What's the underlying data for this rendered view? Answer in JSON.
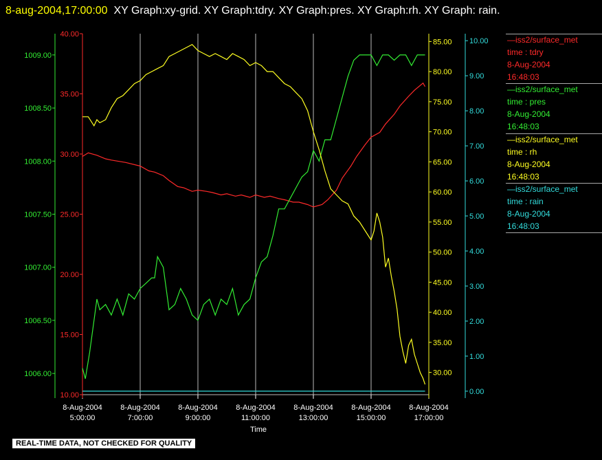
{
  "header": {
    "timestamp": "8-aug-2004,17:00:00",
    "graphs_text": "XY Graph:xy-grid.  XY Graph:tdry.  XY Graph:pres.  XY Graph:rh.  XY Graph: rain."
  },
  "legend": [
    {
      "source": "iss2/surface_met",
      "field": "time : tdry",
      "date": "8-Aug-2004",
      "time": "16:48:03",
      "color": "#ff2a2a"
    },
    {
      "source": "iss2/surface_met",
      "field": "time : pres",
      "date": "8-Aug-2004",
      "time": "16:48:03",
      "color": "#33ee33"
    },
    {
      "source": "iss2/surface_met",
      "field": "time : rh",
      "date": "8-Aug-2004",
      "time": "16:48:03",
      "color": "#ffff22"
    },
    {
      "source": "iss2/surface_met",
      "field": "time : rain",
      "date": "8-Aug-2004",
      "time": "16:48:03",
      "color": "#33dddd"
    }
  ],
  "footer": "REAL-TIME DATA, NOT CHECKED FOR QUALITY",
  "chart_data": {
    "type": "line",
    "xlabel": "Time",
    "x_ticks": [
      {
        "date": "8-Aug-2004",
        "time": "5:00:00",
        "hour": 5
      },
      {
        "date": "8-Aug-2004",
        "time": "7:00:00",
        "hour": 7
      },
      {
        "date": "8-Aug-2004",
        "time": "9:00:00",
        "hour": 9
      },
      {
        "date": "8-Aug-2004",
        "time": "11:00:00",
        "hour": 11
      },
      {
        "date": "8-Aug-2004",
        "time": "13:00:00",
        "hour": 13
      },
      {
        "date": "8-Aug-2004",
        "time": "15:00:00",
        "hour": 15
      },
      {
        "date": "8-Aug-2004",
        "time": "17:00:00",
        "hour": 17
      }
    ],
    "xlim": [
      5,
      17
    ],
    "grid": true,
    "legend_position": "right",
    "axes": {
      "pres": {
        "color": "#33ee33",
        "ylim": [
          1005.8,
          1009.2
        ],
        "ticks": [
          "1006.00",
          "1006.50",
          "1007.00",
          "1007.50",
          "1008.00",
          "1008.50",
          "1009.00"
        ],
        "tick_values": [
          1006.0,
          1006.5,
          1007.0,
          1007.5,
          1008.0,
          1008.5,
          1009.0
        ]
      },
      "tdry": {
        "color": "#ff2a2a",
        "ylim": [
          10,
          40
        ],
        "ticks": [
          "10.00",
          "15.00",
          "20.00",
          "25.00",
          "30.00",
          "35.00",
          "40.00"
        ],
        "tick_values": [
          10,
          15,
          20,
          25,
          30,
          35,
          40
        ]
      },
      "rh": {
        "color": "#ffff22",
        "ylim": [
          26.3,
          86.3
        ],
        "ticks": [
          "30.00",
          "35.00",
          "40.00",
          "45.00",
          "50.00",
          "55.00",
          "60.00",
          "65.00",
          "70.00",
          "75.00",
          "80.00",
          "85.00"
        ],
        "tick_values": [
          30,
          35,
          40,
          45,
          50,
          55,
          60,
          65,
          70,
          75,
          80,
          85
        ]
      },
      "rain": {
        "color": "#33dddd",
        "ylim": [
          -0.1,
          10.2
        ],
        "ticks": [
          "0.00",
          "1.00",
          "2.00",
          "3.00",
          "4.00",
          "5.00",
          "6.00",
          "7.00",
          "8.00",
          "9.00",
          "10.00"
        ],
        "tick_values": [
          0,
          1,
          2,
          3,
          4,
          5,
          6,
          7,
          8,
          9,
          10
        ]
      }
    },
    "series": [
      {
        "name": "time : tdry",
        "color": "#ff2a2a",
        "axis": "tdry",
        "x": [
          5.0,
          5.2,
          5.5,
          5.8,
          6.0,
          6.5,
          7.0,
          7.3,
          7.5,
          7.8,
          8.0,
          8.3,
          8.5,
          8.8,
          9.0,
          9.3,
          9.5,
          9.8,
          10.0,
          10.3,
          10.5,
          10.8,
          11.0,
          11.3,
          11.5,
          11.8,
          12.0,
          12.3,
          12.5,
          12.8,
          13.0,
          13.3,
          13.5,
          13.8,
          14.0,
          14.3,
          14.5,
          14.8,
          15.0,
          15.3,
          15.5,
          15.8,
          16.0,
          16.3,
          16.5,
          16.8,
          16.87
        ],
        "values": [
          29.8,
          30.1,
          29.9,
          29.6,
          29.5,
          29.3,
          29.0,
          28.6,
          28.5,
          28.2,
          27.8,
          27.3,
          27.2,
          26.9,
          27.0,
          26.9,
          26.8,
          26.6,
          26.7,
          26.5,
          26.6,
          26.4,
          26.6,
          26.4,
          26.5,
          26.3,
          26.2,
          26.0,
          26.0,
          25.8,
          25.6,
          25.8,
          26.2,
          27.0,
          28.0,
          29.0,
          29.8,
          30.8,
          31.4,
          31.8,
          32.5,
          33.3,
          34.0,
          34.8,
          35.3,
          35.9,
          35.6
        ]
      },
      {
        "name": "time : pres",
        "color": "#33ee33",
        "axis": "pres",
        "x": [
          5.0,
          5.1,
          5.25,
          5.4,
          5.5,
          5.6,
          5.8,
          6.0,
          6.2,
          6.4,
          6.6,
          6.8,
          7.0,
          7.2,
          7.4,
          7.5,
          7.6,
          7.8,
          8.0,
          8.2,
          8.4,
          8.6,
          8.8,
          9.0,
          9.2,
          9.4,
          9.6,
          9.8,
          10.0,
          10.2,
          10.4,
          10.6,
          10.8,
          11.0,
          11.2,
          11.4,
          11.5,
          11.6,
          11.8,
          12.0,
          12.2,
          12.4,
          12.6,
          12.8,
          13.0,
          13.2,
          13.4,
          13.6,
          13.8,
          14.0,
          14.2,
          14.4,
          14.6,
          14.8,
          15.0,
          15.2,
          15.4,
          15.6,
          15.8,
          16.0,
          16.2,
          16.4,
          16.6,
          16.8,
          16.87
        ],
        "values": [
          1006.05,
          1005.95,
          1006.2,
          1006.5,
          1006.7,
          1006.6,
          1006.65,
          1006.55,
          1006.7,
          1006.55,
          1006.75,
          1006.7,
          1006.8,
          1006.85,
          1006.9,
          1006.9,
          1007.1,
          1007.0,
          1006.6,
          1006.65,
          1006.8,
          1006.7,
          1006.55,
          1006.5,
          1006.65,
          1006.7,
          1006.55,
          1006.7,
          1006.65,
          1006.8,
          1006.55,
          1006.65,
          1006.7,
          1006.9,
          1007.05,
          1007.1,
          1007.2,
          1007.3,
          1007.55,
          1007.55,
          1007.65,
          1007.75,
          1007.85,
          1007.9,
          1008.1,
          1008.0,
          1008.2,
          1008.2,
          1008.4,
          1008.6,
          1008.8,
          1008.95,
          1009.0,
          1009.0,
          1009.0,
          1008.9,
          1009.0,
          1009.0,
          1008.95,
          1009.0,
          1009.0,
          1008.9,
          1009.0,
          1009.0,
          1009.0
        ]
      },
      {
        "name": "time : rh",
        "color": "#ffff22",
        "axis": "rh",
        "x": [
          5.0,
          5.2,
          5.4,
          5.5,
          5.6,
          5.8,
          6.0,
          6.2,
          6.4,
          6.6,
          6.8,
          7.0,
          7.2,
          7.4,
          7.6,
          7.8,
          8.0,
          8.2,
          8.4,
          8.6,
          8.8,
          9.0,
          9.2,
          9.4,
          9.6,
          9.8,
          10.0,
          10.2,
          10.4,
          10.6,
          10.8,
          11.0,
          11.2,
          11.4,
          11.6,
          11.8,
          12.0,
          12.2,
          12.4,
          12.6,
          12.8,
          13.0,
          13.2,
          13.4,
          13.6,
          13.8,
          14.0,
          14.2,
          14.4,
          14.6,
          14.8,
          15.0,
          15.1,
          15.2,
          15.3,
          15.4,
          15.5,
          15.6,
          15.7,
          15.8,
          15.9,
          16.0,
          16.1,
          16.2,
          16.3,
          16.4,
          16.5,
          16.6,
          16.7,
          16.8,
          16.87
        ],
        "values": [
          72.5,
          72.5,
          71.0,
          72.0,
          71.5,
          72.0,
          74.0,
          75.5,
          76.0,
          77.0,
          78.0,
          78.5,
          79.5,
          80.0,
          80.5,
          81.0,
          82.5,
          83.0,
          83.5,
          84.0,
          84.5,
          83.5,
          83.0,
          82.5,
          83.0,
          82.5,
          82.0,
          83.0,
          82.5,
          82.0,
          81.0,
          81.5,
          81.0,
          80.0,
          80.0,
          79.0,
          78.0,
          77.5,
          76.5,
          75.5,
          73.5,
          70.0,
          67.0,
          63.5,
          60.5,
          59.5,
          58.5,
          58.0,
          56.0,
          55.0,
          53.5,
          52.0,
          53.5,
          56.5,
          55.0,
          52.5,
          47.5,
          49.0,
          46.0,
          43.5,
          40.5,
          36.0,
          33.5,
          31.5,
          34.5,
          35.5,
          33.0,
          31.5,
          30.0,
          29.0,
          28.0
        ]
      },
      {
        "name": "time : rain",
        "color": "#33dddd",
        "axis": "rain",
        "x": [
          5.0,
          16.87
        ],
        "values": [
          0.0,
          0.0
        ]
      }
    ]
  }
}
